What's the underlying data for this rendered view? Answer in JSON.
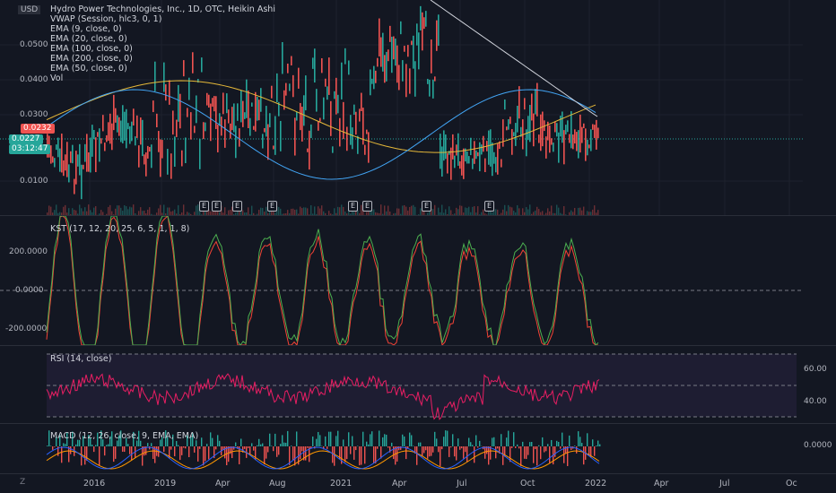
{
  "currency": "USD",
  "main_legend": [
    "Hydro Power Technologies, Inc., 1D, OTC, Heikin Ashi",
    "VWAP (Session, hlc3, 0, 1)",
    "EMA (9, close, 0)",
    "EMA (20, close, 0)",
    "EMA (100, close, 0)",
    "EMA (200, close, 0)",
    "EMA (50, close, 0)",
    "Vol"
  ],
  "price_axis": [
    "0.0500",
    "0.0400",
    "0.0300",
    "0.0100"
  ],
  "price_badges": {
    "last": "0.0232",
    "current": "0.0227",
    "countdown": "03:12:47"
  },
  "earnings_marker": "E",
  "kst": {
    "legend": "KST (17, 12, 20, 25, 6, 5, 1, 1, 8)",
    "axis": [
      "200.0000",
      "0.0000",
      "-200.0000"
    ]
  },
  "rsi": {
    "legend": "RSI (14, close)",
    "axis": [
      "60.00",
      "40.00"
    ]
  },
  "macd": {
    "legend": "MACD (12, 26, close, 9, EMA, EMA)",
    "axis": [
      "0.0000"
    ]
  },
  "time_axis": [
    "2016",
    "2019",
    "Apr",
    "Aug",
    "2021",
    "Apr",
    "Jul",
    "Oct",
    "2022",
    "Apr",
    "Jul",
    "Oc"
  ],
  "zoom_button": "Z",
  "colors": {
    "up": "#26a69a",
    "down": "#ef5350",
    "ema_yellow": "#e5b839",
    "ema_white": "#d1d4dc",
    "ema_blue": "#42a5f5",
    "rsi": "#e91e63",
    "kst_green": "#4caf50",
    "kst_red": "#f44336"
  }
}
